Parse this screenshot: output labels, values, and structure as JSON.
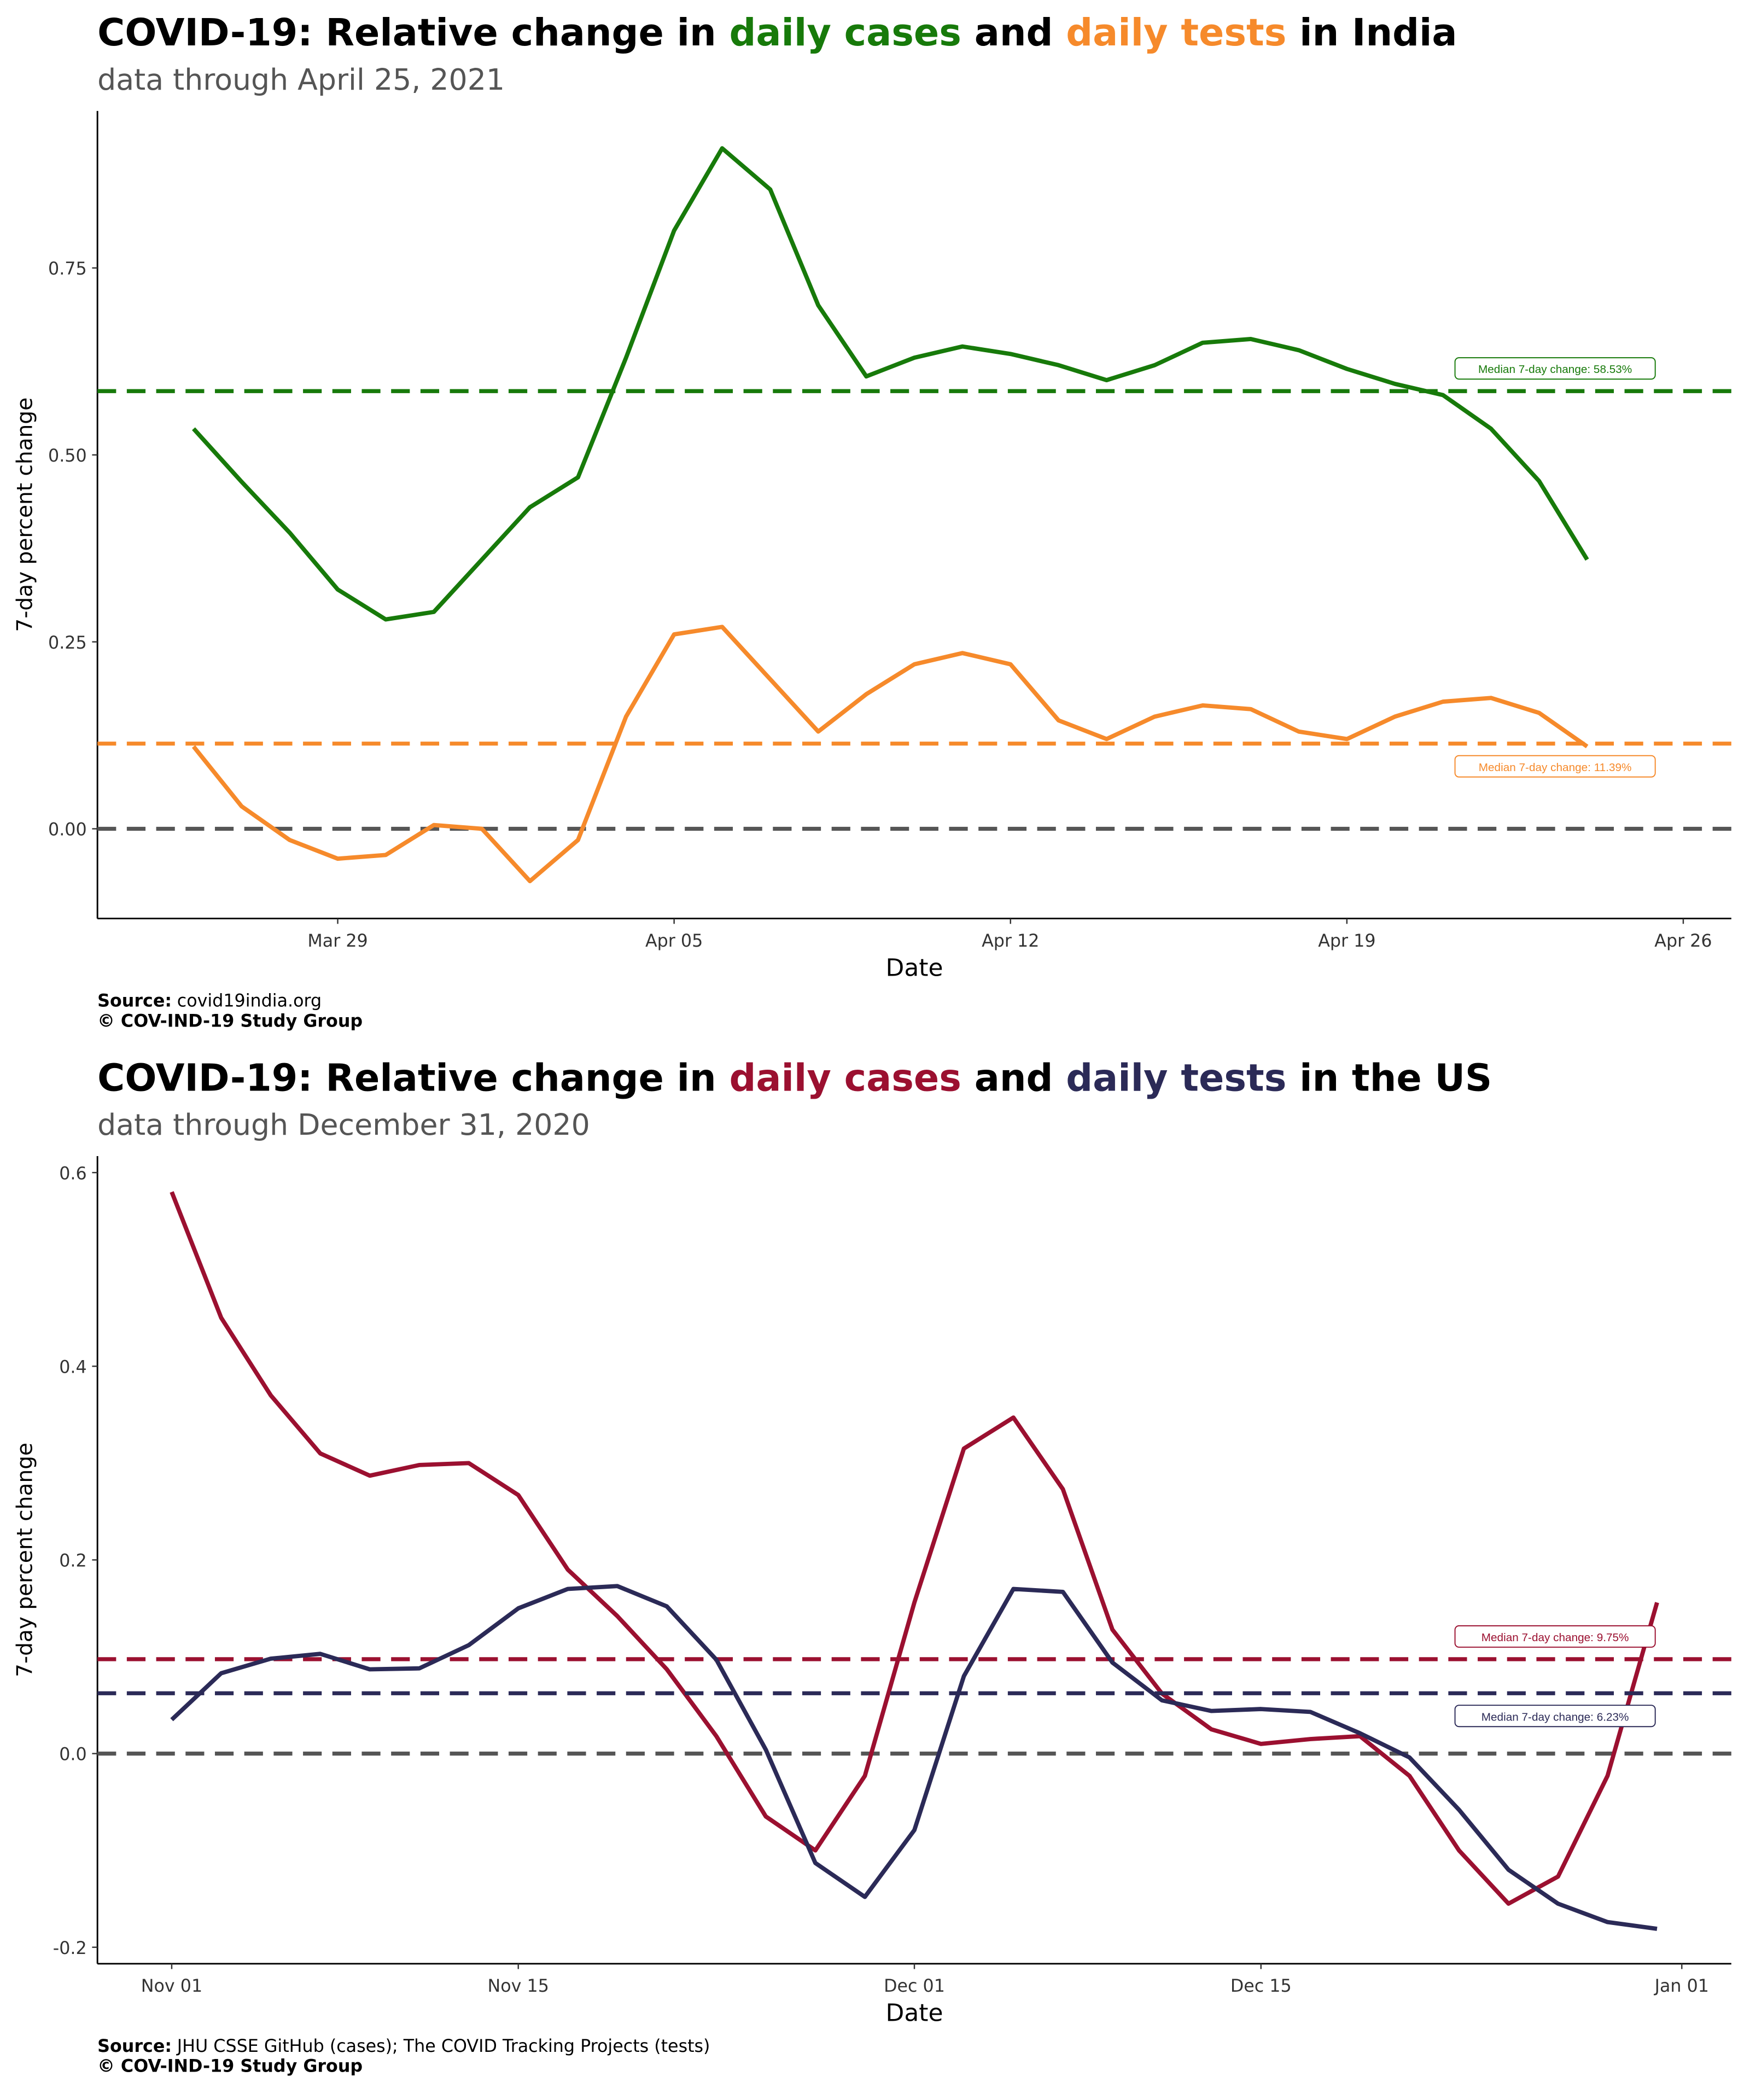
{
  "chart_data": [
    {
      "type": "line",
      "title": [
        {
          "text": "COVID-19: Relative change in ",
          "color": "#000000"
        },
        {
          "text": "daily cases",
          "color": "#177a0a"
        },
        {
          "text": " and ",
          "color": "#000000"
        },
        {
          "text": "daily tests",
          "color": "#f68a2b"
        },
        {
          "text": " in India",
          "color": "#000000"
        }
      ],
      "subtitle": "data through April 25, 2021",
      "x_label": "Date",
      "y_label": "7-day percent change",
      "source_label": "Source:",
      "source": "covid19india.org",
      "copyright": "© COV-IND-19 Study Group",
      "x": [
        "Mar 26",
        "Mar 27",
        "Mar 28",
        "Mar 29",
        "Mar 30",
        "Mar 31",
        "Apr 01",
        "Apr 02",
        "Apr 03",
        "Apr 04",
        "Apr 05",
        "Apr 06",
        "Apr 07",
        "Apr 08",
        "Apr 09",
        "Apr 10",
        "Apr 11",
        "Apr 12",
        "Apr 13",
        "Apr 14",
        "Apr 15",
        "Apr 16",
        "Apr 17",
        "Apr 18",
        "Apr 19",
        "Apr 20",
        "Apr 21",
        "Apr 22",
        "Apr 23",
        "Apr 24"
      ],
      "xlim": [
        "Mar 24",
        "Apr 27"
      ],
      "xticks": [
        "Mar 29",
        "Apr 05",
        "Apr 12",
        "Apr 19",
        "Apr 26"
      ],
      "ylim": [
        -0.12,
        0.96
      ],
      "yticks": [
        {
          "value": 0,
          "label": "0.00"
        },
        0.25,
        {
          "value": 0.5,
          "label": "0.50"
        },
        0.75
      ],
      "reference_line": {
        "value": 0,
        "color": "#555555"
      },
      "series": [
        {
          "name": "daily cases",
          "color": "#177a0a",
          "median": 0.5853,
          "median_label": "Median 7-day change: 58.53%",
          "values": [
            0.535,
            0.464,
            0.396,
            0.32,
            0.28,
            0.29,
            0.36,
            0.43,
            0.47,
            0.63,
            0.8,
            0.91,
            0.855,
            0.7,
            0.605,
            0.63,
            0.645,
            0.635,
            0.62,
            0.6,
            0.62,
            0.65,
            0.655,
            0.64,
            0.615,
            0.595,
            0.58,
            0.535,
            0.465,
            0.36
          ]
        },
        {
          "name": "daily tests",
          "color": "#f68a2b",
          "median": 0.1139,
          "median_label": "Median 7-day change: 11.39%",
          "values": [
            0.11,
            0.03,
            -0.015,
            -0.04,
            -0.035,
            0.005,
            0,
            -0.07,
            -0.015,
            0.15,
            0.26,
            0.27,
            0.2,
            0.13,
            0.18,
            0.22,
            0.235,
            0.22,
            0.145,
            0.12,
            0.15,
            0.165,
            0.16,
            0.13,
            0.12,
            0.15,
            0.17,
            0.175,
            0.155,
            0.11
          ]
        }
      ]
    },
    {
      "type": "line",
      "title": [
        {
          "text": "COVID-19: Relative change in ",
          "color": "#000000"
        },
        {
          "text": "daily cases",
          "color": "#9b1030"
        },
        {
          "text": " and ",
          "color": "#000000"
        },
        {
          "text": "daily tests",
          "color": "#2b2a57"
        },
        {
          "text": " in the US",
          "color": "#000000"
        }
      ],
      "subtitle": "data through December 31, 2020",
      "x_label": "Date",
      "y_label": "7-day percent change",
      "source_label": "Source:",
      "source": "JHU CSSE GitHub (cases); The COVID Tracking Projects (tests)",
      "copyright": "© COV-IND-19 Study Group",
      "x": [
        "Nov 01",
        "Nov 03",
        "Nov 05",
        "Nov 07",
        "Nov 09",
        "Nov 11",
        "Nov 13",
        "Nov 15",
        "Nov 17",
        "Nov 19",
        "Nov 21",
        "Nov 23",
        "Nov 25",
        "Nov 27",
        "Nov 29",
        "Dec 01",
        "Dec 03",
        "Dec 05",
        "Dec 07",
        "Dec 09",
        "Dec 11",
        "Dec 13",
        "Dec 15",
        "Dec 17",
        "Dec 19",
        "Dec 21",
        "Dec 23",
        "Dec 25",
        "Dec 27",
        "Dec 29",
        "Dec 31"
      ],
      "xlim": [
        "Oct 29",
        "Jan 03"
      ],
      "xticks": [
        "Nov 01",
        "Nov 15",
        "Dec 01",
        "Dec 15",
        "Jan 01"
      ],
      "ylim": [
        -0.217,
        0.617
      ],
      "yticks": [
        -0.2,
        {
          "value": 0,
          "label": "0.0"
        },
        0.2,
        0.4,
        0.6
      ],
      "reference_line": {
        "value": 0,
        "color": "#555555"
      },
      "series": [
        {
          "name": "daily cases",
          "color": "#9b1030",
          "median": 0.0975,
          "median_label": "Median 7-day change: 9.75%",
          "values": [
            0.58,
            0.45,
            0.37,
            0.31,
            0.287,
            0.298,
            0.3,
            0.267,
            0.19,
            0.142,
            0.087,
            0.018,
            -0.065,
            -0.1,
            -0.023,
            0.156,
            0.315,
            0.347,
            0.273,
            0.128,
            0.062,
            0.025,
            0.01,
            0.015,
            0.018,
            -0.023,
            -0.1,
            -0.155,
            -0.127,
            -0.023,
            0.156
          ]
        },
        {
          "name": "daily tests",
          "color": "#2b2a57",
          "median": 0.0623,
          "median_label": "Median 7-day change: 6.23%",
          "values": [
            0.035,
            0.083,
            0.098,
            0.103,
            0.087,
            0.088,
            0.112,
            0.15,
            0.17,
            0.173,
            0.152,
            0.097,
            0.004,
            -0.113,
            -0.148,
            -0.079,
            0.08,
            0.17,
            0.167,
            0.094,
            0.055,
            0.044,
            0.046,
            0.043,
            0.021,
            -0.004,
            -0.058,
            -0.12,
            -0.155,
            -0.174,
            -0.181
          ]
        }
      ]
    }
  ]
}
